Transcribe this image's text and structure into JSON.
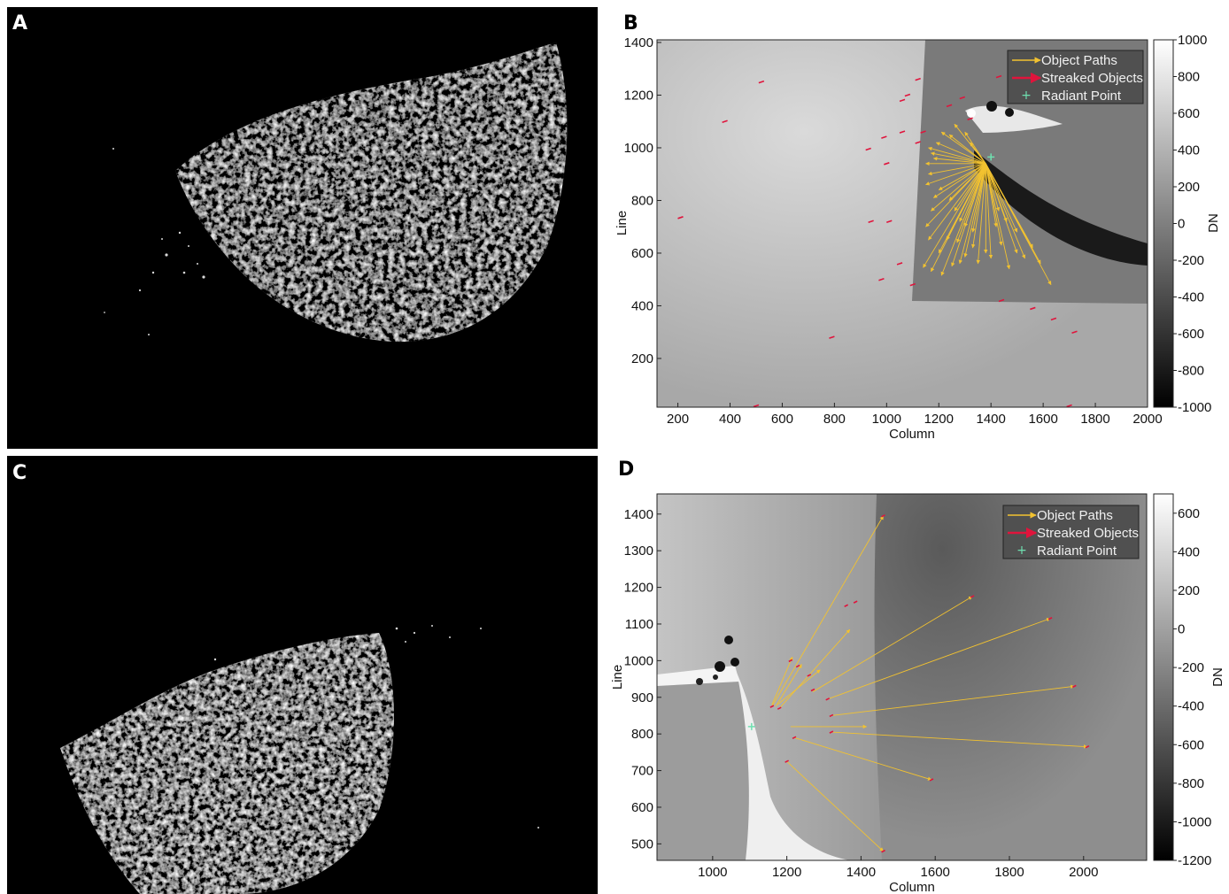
{
  "panels": {
    "a": "A",
    "b": "B",
    "c": "C",
    "d": "D"
  },
  "colors": {
    "object_path": "#f2c230",
    "streaked": "#e0143c",
    "radiant": "#6fe0b0"
  },
  "chart_data": [
    {
      "panel": "B",
      "type": "scatter",
      "xlabel": "Column",
      "ylabel": "Line",
      "colorbar_label": "DN",
      "xlim": [
        120,
        2000
      ],
      "ylim": [
        15,
        1410
      ],
      "xticks": [
        200,
        400,
        600,
        800,
        1000,
        1200,
        1400,
        1600,
        1800,
        2000
      ],
      "yticks": [
        200,
        400,
        600,
        800,
        1000,
        1200,
        1400
      ],
      "colorbar": {
        "min": -1000,
        "max": 1000,
        "ticks": [
          -1000,
          -800,
          -600,
          -400,
          -200,
          0,
          200,
          400,
          600,
          800,
          1000
        ]
      },
      "legend": {
        "position": "top-right",
        "entries": [
          "Object Paths",
          "Streaked Objects",
          "Radiant Point"
        ]
      },
      "radiant": [
        1400,
        965
      ],
      "path_origin": [
        1380,
        940
      ],
      "path_ends": [
        [
          1140,
          545
        ],
        [
          1170,
          530
        ],
        [
          1210,
          515
        ],
        [
          1250,
          550
        ],
        [
          1280,
          560
        ],
        [
          1300,
          585
        ],
        [
          1330,
          620
        ],
        [
          1350,
          560
        ],
        [
          1380,
          600
        ],
        [
          1400,
          580
        ],
        [
          1440,
          630
        ],
        [
          1470,
          540
        ],
        [
          1500,
          600
        ],
        [
          1530,
          580
        ],
        [
          1560,
          620
        ],
        [
          1590,
          560
        ],
        [
          1630,
          480
        ],
        [
          1500,
          680
        ],
        [
          1460,
          720
        ],
        [
          1160,
          650
        ],
        [
          1150,
          700
        ],
        [
          1170,
          760
        ],
        [
          1180,
          810
        ],
        [
          1150,
          860
        ],
        [
          1160,
          900
        ],
        [
          1150,
          940
        ],
        [
          1170,
          980
        ],
        [
          1190,
          1020
        ],
        [
          1210,
          1060
        ],
        [
          1260,
          1090
        ],
        [
          1300,
          1060
        ],
        [
          1320,
          1020
        ],
        [
          1200,
          840
        ],
        [
          1240,
          800
        ],
        [
          1260,
          760
        ],
        [
          1280,
          720
        ],
        [
          1300,
          700
        ],
        [
          1200,
          600
        ],
        [
          1230,
          650
        ],
        [
          1270,
          640
        ],
        [
          1330,
          680
        ],
        [
          1420,
          700
        ],
        [
          1430,
          760
        ],
        [
          1160,
          1000
        ],
        [
          1180,
          960
        ],
        [
          1240,
          1050
        ]
      ],
      "streaks": [
        [
          210,
          735
        ],
        [
          380,
          1100
        ],
        [
          520,
          1250
        ],
        [
          930,
          995
        ],
        [
          990,
          1040
        ],
        [
          1060,
          1060
        ],
        [
          1120,
          1020
        ],
        [
          1140,
          1060
        ],
        [
          1000,
          940
        ],
        [
          940,
          720
        ],
        [
          1010,
          720
        ],
        [
          980,
          500
        ],
        [
          1050,
          560
        ],
        [
          1100,
          480
        ],
        [
          1290,
          1190
        ],
        [
          1240,
          1160
        ],
        [
          1320,
          1110
        ],
        [
          1060,
          1180
        ],
        [
          1120,
          1260
        ],
        [
          1440,
          420
        ],
        [
          1560,
          390
        ],
        [
          1640,
          350
        ],
        [
          1720,
          300
        ],
        [
          790,
          280
        ],
        [
          500,
          20
        ],
        [
          1700,
          20
        ],
        [
          1430,
          1270
        ],
        [
          1080,
          1200
        ]
      ]
    },
    {
      "panel": "D",
      "type": "scatter",
      "xlabel": "Column",
      "ylabel": "Line",
      "colorbar_label": "DN",
      "xlim": [
        850,
        2170
      ],
      "ylim": [
        455,
        1455
      ],
      "xticks": [
        1000,
        1200,
        1400,
        1600,
        1800,
        2000
      ],
      "yticks": [
        500,
        600,
        700,
        800,
        900,
        1000,
        1100,
        1200,
        1300,
        1400
      ],
      "colorbar": {
        "min": -1200,
        "max": 700,
        "ticks": [
          -1200,
          -1000,
          -800,
          -600,
          -400,
          -200,
          0,
          200,
          400,
          600
        ]
      },
      "legend": {
        "position": "top-right",
        "entries": [
          "Object Paths",
          "Streaked Objects",
          "Radiant Point"
        ]
      },
      "radiant": [
        1105,
        820
      ],
      "paths": [
        [
          1160,
          875,
          1460,
          1395
        ],
        [
          1160,
          880,
          1215,
          1010
        ],
        [
          1170,
          875,
          1240,
          990
        ],
        [
          1175,
          880,
          1290,
          975
        ],
        [
          1180,
          870,
          1370,
          1085
        ],
        [
          1270,
          915,
          1700,
          1175
        ],
        [
          1310,
          895,
          1910,
          1115
        ],
        [
          1320,
          850,
          1975,
          930
        ],
        [
          1320,
          805,
          2010,
          765
        ],
        [
          1210,
          820,
          1415,
          820
        ],
        [
          1220,
          790,
          1590,
          675
        ],
        [
          1200,
          725,
          1460,
          480
        ]
      ],
      "streaks": [
        [
          1160,
          875
        ],
        [
          1180,
          870
        ],
        [
          1210,
          1000
        ],
        [
          1230,
          985
        ],
        [
          1260,
          960
        ],
        [
          1270,
          920
        ],
        [
          1310,
          895
        ],
        [
          1320,
          850
        ],
        [
          1320,
          805
        ],
        [
          1220,
          790
        ],
        [
          1200,
          725
        ],
        [
          1360,
          1150
        ],
        [
          1385,
          1160
        ],
        [
          1460,
          1395
        ],
        [
          1700,
          1175
        ],
        [
          1910,
          1115
        ],
        [
          1975,
          930
        ],
        [
          2010,
          765
        ],
        [
          1590,
          675
        ],
        [
          1460,
          480
        ]
      ]
    }
  ]
}
